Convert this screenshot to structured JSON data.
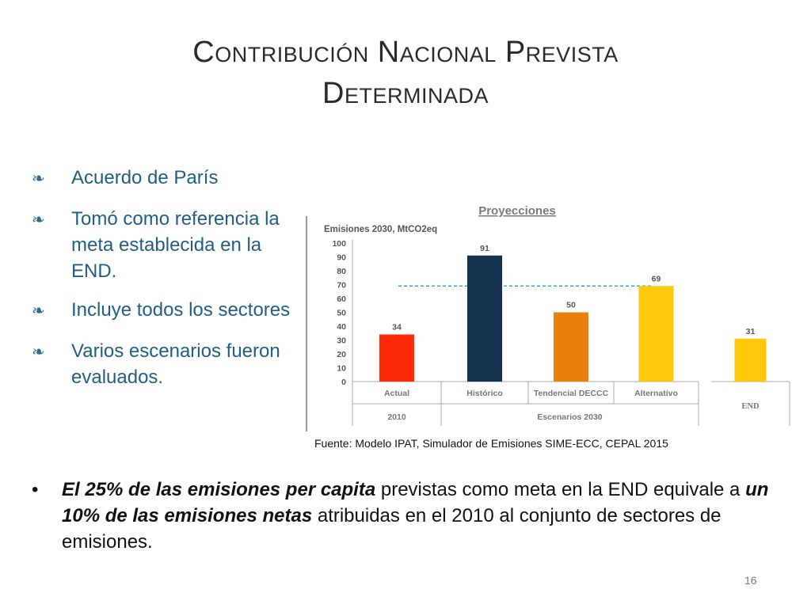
{
  "slide": {
    "title_line1": "Contribución Nacional Prevista",
    "title_line2": "Determinada",
    "page_number": "16"
  },
  "bullets": [
    {
      "text": "Acuerdo de París",
      "icon": "quill-bullet-icon"
    },
    {
      "text": "Tomó como referencia la meta establecida en la END.",
      "icon": "quill-bullet-icon"
    },
    {
      "text": "Incluye todos los sectores",
      "icon": "quill-bullet-icon"
    },
    {
      "text": "Varios escenarios fueron evaluados.",
      "icon": "quill-bullet-icon"
    }
  ],
  "bottom_bullet": {
    "dot": "•",
    "part1_bold": "El 25% de las emisiones per capita",
    "part2": " previstas como meta en la END equivale a ",
    "part3_bold": "un 10% de las emisiones netas",
    "part4": " atribuidas en el 2010 al conjunto de sectores de emisiones."
  },
  "source": "Fuente: Modelo IPAT, Simulador de Emisiones SIME-ECC, CEPAL 2015",
  "chart_data": {
    "type": "bar",
    "title": "Proyecciones",
    "ylabel": "Emisiones 2030, MtCO2eq",
    "ylim": [
      0,
      100
    ],
    "yticks": [
      0,
      10,
      20,
      30,
      40,
      50,
      60,
      70,
      80,
      90,
      100
    ],
    "categories": [
      "Actual",
      "Histórico",
      "Tendencial DECCC",
      "Alternativo",
      "END"
    ],
    "values": [
      34,
      91,
      50,
      69,
      31
    ],
    "colors": [
      "#ff2a0a",
      "#14324f",
      "#e8820a",
      "#ffc80a",
      "#ffc80a"
    ],
    "groups": [
      {
        "label": "2010",
        "categories": [
          "Actual"
        ]
      },
      {
        "label": "Escenarios 2030",
        "categories": [
          "Histórico",
          "Tendencial DECCC",
          "Alternativo"
        ]
      },
      {
        "label": "END",
        "categories": [
          "END"
        ]
      }
    ],
    "reference_line": {
      "value": 69,
      "style": "dashed",
      "color": "#2aa9c9"
    }
  }
}
